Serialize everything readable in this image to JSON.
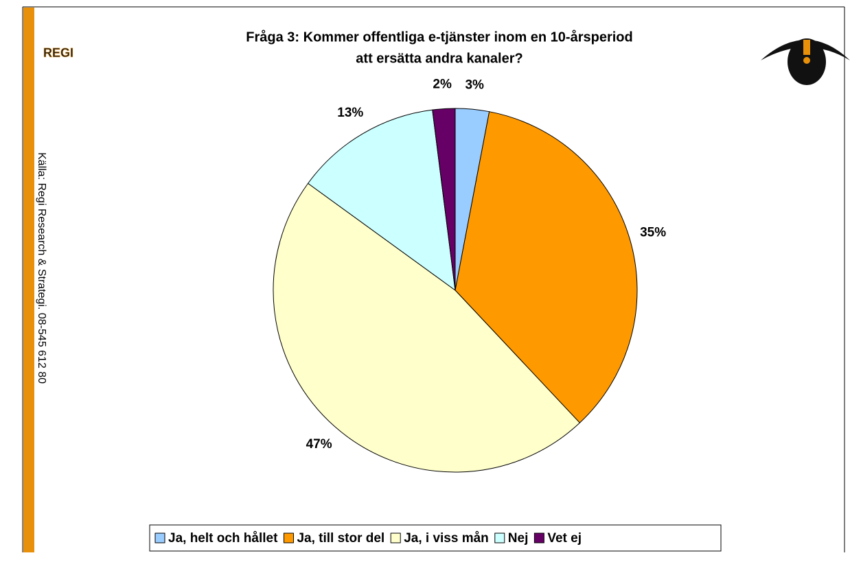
{
  "chart_data": {
    "type": "pie",
    "title": [
      "Fråga 3: Kommer offentliga e-tjänster inom en 10-årsperiod",
      "att ersätta andra kanaler?"
    ],
    "source": "Källa: Regi Research & Strategi. 08-545 612 80",
    "logo": "REGI",
    "categories": [
      "Ja, helt och hållet",
      "Ja, till stor del",
      "Ja, i viss mån",
      "Nej",
      "Vet ej"
    ],
    "values": [
      3,
      35,
      47,
      13,
      2
    ],
    "value_labels": [
      "3%",
      "35%",
      "47%",
      "13%",
      "2%"
    ],
    "colors": [
      "#99ccff",
      "#ff9900",
      "#ffffcc",
      "#ccffff",
      "#660066"
    ],
    "legend": "bottom"
  }
}
